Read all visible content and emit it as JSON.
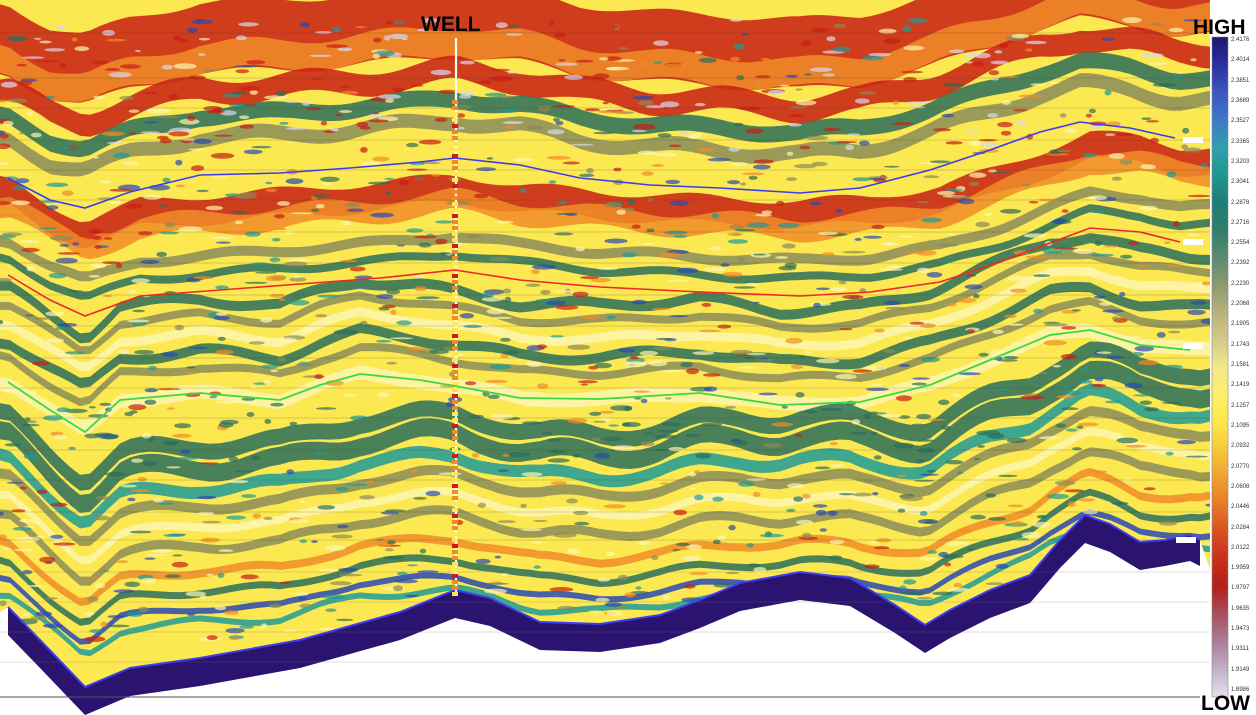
{
  "labels": {
    "well": "WELL",
    "high": "HIGH",
    "low": "LOW"
  },
  "colorbar": {
    "ticks": [
      "2.4176",
      "2.4014",
      "2.3851",
      "2.3689",
      "2.3527",
      "2.3365",
      "2.3203",
      "2.3041",
      "2.2878",
      "2.2716",
      "2.2554",
      "2.2392",
      "2.2230",
      "2.2068",
      "2.1905",
      "2.1743",
      "2.1581",
      "2.1419",
      "2.1257",
      "2.1095",
      "2.0932",
      "2.0770",
      "2.0608",
      "2.0446",
      "2.0284",
      "2.0122",
      "1.9959",
      "1.9797",
      "1.9635",
      "1.9473",
      "1.9311",
      "1.9149",
      "1.8986"
    ],
    "colors": [
      "#1e1470",
      "#2a2fa0",
      "#3a56c0",
      "#3f78c8",
      "#2fa0b0",
      "#209890",
      "#1f7d78",
      "#2f7d6a",
      "#5a8a70",
      "#8a9a70",
      "#b7b27a",
      "#d4c98a",
      "#f2e88a",
      "#fbf06a",
      "#fde84a",
      "#f8c83a",
      "#f0a030",
      "#e87a28",
      "#d8501e",
      "#c8301a",
      "#b42018",
      "#a85060",
      "#a88098",
      "#c0b0c8",
      "#e8e0f0"
    ]
  },
  "seismic_palette": {
    "deep_base": "#2a1470",
    "red_band": "#c81e14",
    "orange_band": "#f08c28",
    "yellow_fill": "#fce850",
    "pale_fill": "#fdf6b0",
    "olive": "#8a8c58",
    "green_band": "#2a6e5a",
    "teal": "#1e9a96",
    "blue_speck": "#2848b4",
    "horizon_blue": "#3c3cf0",
    "horizon_red": "#ee2828",
    "horizon_green": "#3cd83c"
  }
}
